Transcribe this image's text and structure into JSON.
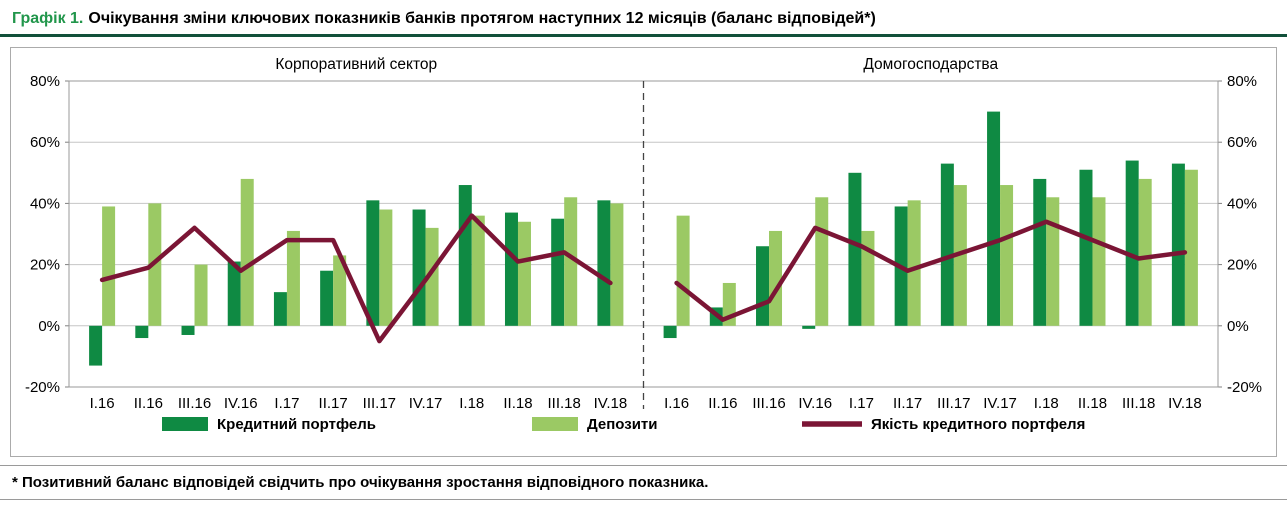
{
  "header": {
    "prefix": "Графік 1.",
    "title": "Очікування зміни ключових показників банків протягом наступних 12 місяців (баланс відповідей*)"
  },
  "footnote": "* Позитивний баланс відповідей свідчить про очікування зростання відповідного показника.",
  "colors": {
    "credit_bar": "#0f8a43",
    "deposit_bar": "#9bc964",
    "quality_line": "#7b1535",
    "title_green": "#21964b",
    "header_rule": "#11503a",
    "gridline": "#c6c6c6",
    "plot_border": "#9a9a9a"
  },
  "chart_data": {
    "type": "bar",
    "subtype": "grouped bars with line overlay, two panels",
    "ylim": [
      -20,
      80
    ],
    "yticks": [
      80,
      60,
      40,
      20,
      0,
      -20
    ],
    "ytick_suffix": "%",
    "grid": true,
    "legend_position": "bottom",
    "categories": [
      "І.16",
      "ІІ.16",
      "ІІІ.16",
      "ІV.16",
      "І.17",
      "ІІ.17",
      "ІІІ.17",
      "ІV.17",
      "І.18",
      "ІІ.18",
      "ІІІ.18",
      "ІV.18"
    ],
    "legend": [
      {
        "label": "Кредитний портфель",
        "type": "bar",
        "color": "#0f8a43"
      },
      {
        "label": "Депозити",
        "type": "bar",
        "color": "#9bc964"
      },
      {
        "label": "Якість кредитного портфеля",
        "type": "line",
        "color": "#7b1535"
      }
    ],
    "panels": [
      {
        "title": "Корпоративний сектор",
        "series": [
          {
            "name": "Кредитний портфель",
            "type": "bar",
            "values": [
              -13,
              -4,
              -3,
              21,
              11,
              18,
              41,
              38,
              46,
              37,
              35,
              41
            ]
          },
          {
            "name": "Депозити",
            "type": "bar",
            "values": [
              39,
              40,
              20,
              48,
              31,
              23,
              38,
              32,
              36,
              34,
              42,
              40
            ]
          },
          {
            "name": "Якість кредитного портфеля",
            "type": "line",
            "values": [
              15,
              19,
              32,
              18,
              28,
              28,
              -5,
              15,
              36,
              21,
              24,
              14
            ]
          }
        ]
      },
      {
        "title": "Домогосподарства",
        "series": [
          {
            "name": "Кредитний портфель",
            "type": "bar",
            "values": [
              -4,
              6,
              26,
              -1,
              50,
              39,
              53,
              70,
              48,
              51,
              54,
              53
            ]
          },
          {
            "name": "Депозити",
            "type": "bar",
            "values": [
              36,
              14,
              31,
              42,
              31,
              41,
              46,
              46,
              42,
              42,
              48,
              51
            ]
          },
          {
            "name": "Якість кредитного портфеля",
            "type": "line",
            "values": [
              14,
              2,
              8,
              32,
              26,
              18,
              23,
              28,
              34,
              28,
              22,
              24
            ]
          }
        ]
      }
    ]
  }
}
